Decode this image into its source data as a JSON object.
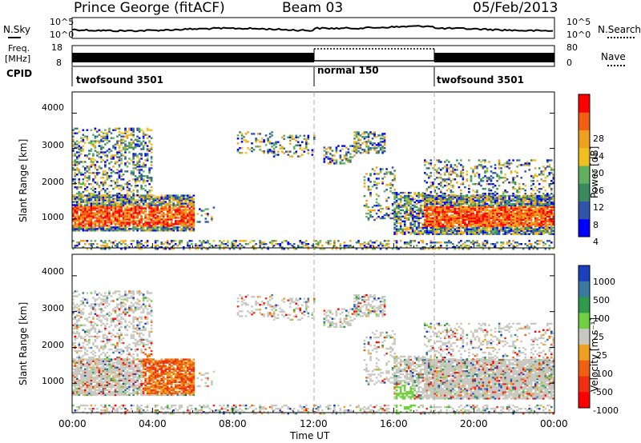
{
  "header": {
    "station": "Prince George (fitACF)",
    "beam": "Beam 03",
    "date": "05/Feb/2013"
  },
  "noise_panel": {
    "left_label": "N.Sky",
    "right_label": "N.Search",
    "y_ticks": [
      "10^5",
      "10^0"
    ]
  },
  "freq_panel": {
    "left_label_line1": "Freq.",
    "left_label_line2": "[MHz]",
    "left_ticks": [
      "18",
      "8"
    ],
    "right_label": "Nave",
    "right_ticks": [
      "80",
      "0"
    ]
  },
  "cpid_panel": {
    "label": "CPID",
    "segments": [
      {
        "name": "twofsound 3501",
        "start_hour": 0,
        "end_hour": 12
      },
      {
        "name": "normal 150",
        "start_hour": 12,
        "end_hour": 18
      },
      {
        "name": "twofsound 3501",
        "start_hour": 18,
        "end_hour": 24
      }
    ]
  },
  "colors": {
    "power_scale": [
      "#0000ff",
      "#2e55aa",
      "#3a8a60",
      "#60b060",
      "#f0c020",
      "#f0a020",
      "#f06010",
      "#ff0000"
    ],
    "velocity_scale": [
      "#1a40c0",
      "#3a7aa0",
      "#2e9a4a",
      "#70d040",
      "#c8c8c0",
      "#f0a020",
      "#f06010",
      "#f03010",
      "#ff0000"
    ]
  },
  "chart_data": [
    {
      "type": "heatmap",
      "name": "power",
      "ylabel": "Slant Range [km]",
      "ylim": [
        180,
        4600
      ],
      "y_ticks": [
        "4000",
        "3000",
        "2000",
        "1000"
      ],
      "colorbar_label": "Power [dB]",
      "colorbar_ticks": [
        "28",
        "24",
        "20",
        "16",
        "12",
        "8",
        "4"
      ],
      "colorbar_range": [
        0,
        32
      ]
    },
    {
      "type": "heatmap",
      "name": "velocity",
      "ylabel": "Slant Range [km]",
      "ylim": [
        180,
        4600
      ],
      "y_ticks": [
        "4000",
        "3000",
        "2000",
        "1000"
      ],
      "colorbar_label": "Velocity [m s⁻¹]",
      "colorbar_ticks": [
        "1000",
        "500",
        "100",
        "25",
        "-25",
        "-100",
        "-500",
        "-1000"
      ]
    }
  ],
  "x_axis": {
    "label": "Time UT",
    "ticks": [
      "00:00",
      "04:00",
      "08:00",
      "12:00",
      "16:00",
      "20:00",
      "00:00"
    ],
    "xlim": [
      0,
      24
    ]
  }
}
